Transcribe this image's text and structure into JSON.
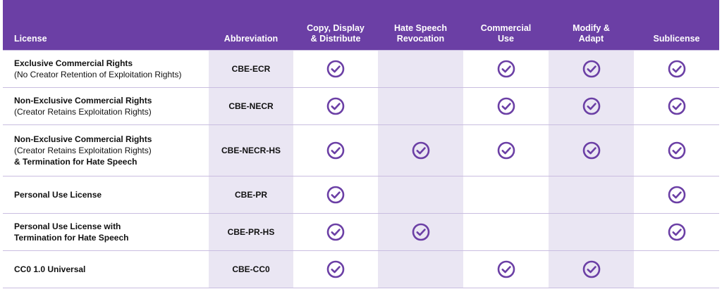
{
  "header": {
    "license": "License",
    "abbreviation": "Abbreviation",
    "copy": "Copy, Display\n& Distribute",
    "hate": "Hate Speech\nRevocation",
    "commercial": "Commercial\nUse",
    "modify": "Modify &\nAdapt",
    "sublicense": "Sublicense"
  },
  "colors": {
    "header_bg": "#6b3fa5",
    "check": "#6b3fa5",
    "shade": "#eae6f3",
    "rule": "#c9bde0"
  },
  "rows": [
    {
      "title": "Exclusive Commercial Rights",
      "subtitle": "(No Creator Retention of Exploitation Rights)",
      "extra": "",
      "abbr": "CBE-ECR",
      "copy": true,
      "hate": false,
      "commercial": true,
      "modify": true,
      "sublicense": true
    },
    {
      "title": "Non-Exclusive Commercial Rights",
      "subtitle": "(Creator Retains Exploitation Rights)",
      "extra": "",
      "abbr": "CBE-NECR",
      "copy": true,
      "hate": false,
      "commercial": true,
      "modify": true,
      "sublicense": true
    },
    {
      "title": "Non-Exclusive Commercial Rights",
      "subtitle": "(Creator Retains Exploitation Rights)",
      "extra": "& Termination for Hate Speech",
      "abbr": "CBE-NECR-HS",
      "copy": true,
      "hate": true,
      "commercial": true,
      "modify": true,
      "sublicense": true
    },
    {
      "title": "Personal Use License",
      "subtitle": "",
      "extra": "",
      "abbr": "CBE-PR",
      "copy": true,
      "hate": false,
      "commercial": false,
      "modify": false,
      "sublicense": true
    },
    {
      "title": "Personal Use License with",
      "subtitle": "",
      "extra": "Termination for Hate Speech",
      "abbr": "CBE-PR-HS",
      "copy": true,
      "hate": true,
      "commercial": false,
      "modify": false,
      "sublicense": true
    },
    {
      "title": "CC0 1.0 Universal",
      "subtitle": "",
      "extra": "",
      "abbr": "CBE-CC0",
      "copy": true,
      "hate": false,
      "commercial": true,
      "modify": true,
      "sublicense": false
    }
  ],
  "icons": {
    "check": "check-circle-icon"
  }
}
